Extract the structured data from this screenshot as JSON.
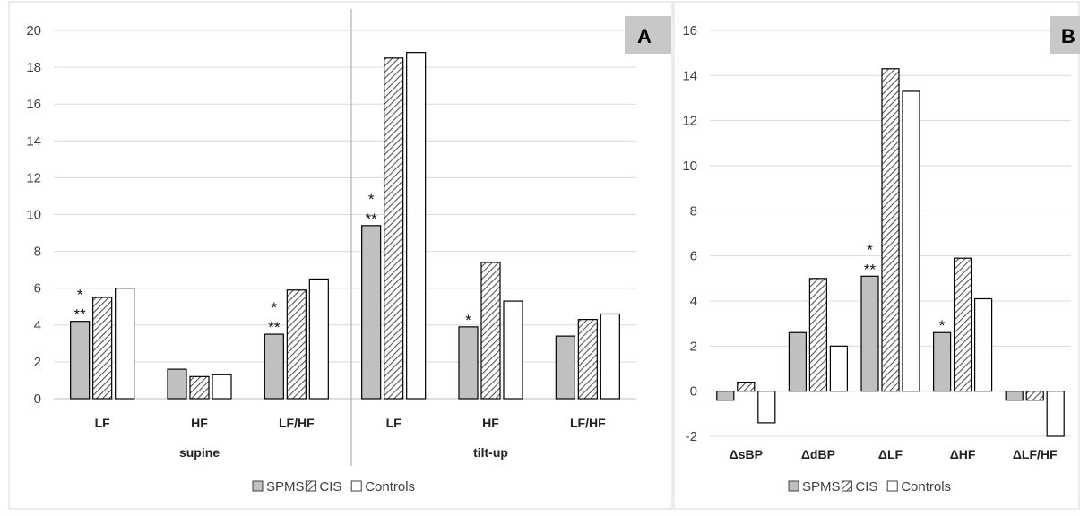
{
  "colors": {
    "SPMS": "#c0c0c0",
    "CIS": "hatched",
    "Controls": "#ffffff",
    "grid": "#d9d9d9",
    "label_box": "#c8c8c8"
  },
  "chart_data": [
    {
      "type": "bar",
      "panel_label": "A",
      "ylim": [
        0,
        20
      ],
      "yticks": [
        0,
        2,
        4,
        6,
        8,
        10,
        12,
        14,
        16,
        18,
        20
      ],
      "grid": true,
      "legend": "bottom",
      "groups": [
        {
          "label": "supine",
          "categories": [
            "LF",
            "HF",
            "LF/HF"
          ]
        },
        {
          "label": "tilt-up",
          "categories": [
            "LF",
            "HF",
            "LF/HF"
          ]
        }
      ],
      "categories": [
        "LF",
        "HF",
        "LF/HF",
        "LF",
        "HF",
        "LF/HF"
      ],
      "series": [
        {
          "name": "SPMS",
          "values": [
            4.2,
            1.6,
            3.5,
            9.4,
            3.9,
            3.4
          ]
        },
        {
          "name": "CIS",
          "values": [
            5.5,
            1.2,
            5.9,
            18.5,
            7.4,
            4.3
          ]
        },
        {
          "name": "Controls",
          "values": [
            6.0,
            1.3,
            6.5,
            18.8,
            5.3,
            4.6
          ]
        }
      ],
      "annotations": [
        {
          "category_index": 0,
          "series": "SPMS",
          "lines": [
            "*",
            "**"
          ]
        },
        {
          "category_index": 2,
          "series": "SPMS",
          "lines": [
            "*",
            "**"
          ]
        },
        {
          "category_index": 3,
          "series": "SPMS",
          "lines": [
            "*",
            "**"
          ]
        },
        {
          "category_index": 4,
          "series": "SPMS",
          "lines": [
            "*"
          ]
        }
      ]
    },
    {
      "type": "bar",
      "panel_label": "B",
      "ylim": [
        -2,
        16
      ],
      "yticks": [
        -2,
        0,
        2,
        4,
        6,
        8,
        10,
        12,
        14,
        16
      ],
      "grid": true,
      "legend": "bottom",
      "categories": [
        "ΔsBP",
        "ΔdBP",
        "ΔLF",
        "ΔHF",
        "ΔLF/HF"
      ],
      "series": [
        {
          "name": "SPMS",
          "values": [
            -0.4,
            2.6,
            5.1,
            2.6,
            -0.4
          ]
        },
        {
          "name": "CIS",
          "values": [
            0.4,
            5.0,
            14.3,
            5.9,
            -0.4
          ]
        },
        {
          "name": "Controls",
          "values": [
            -1.4,
            2.0,
            13.3,
            4.1,
            -2.0
          ]
        }
      ],
      "annotations": [
        {
          "category_index": 2,
          "series": "SPMS",
          "lines": [
            "*",
            "**"
          ]
        },
        {
          "category_index": 3,
          "series": "SPMS",
          "lines": [
            "*"
          ]
        }
      ]
    }
  ]
}
